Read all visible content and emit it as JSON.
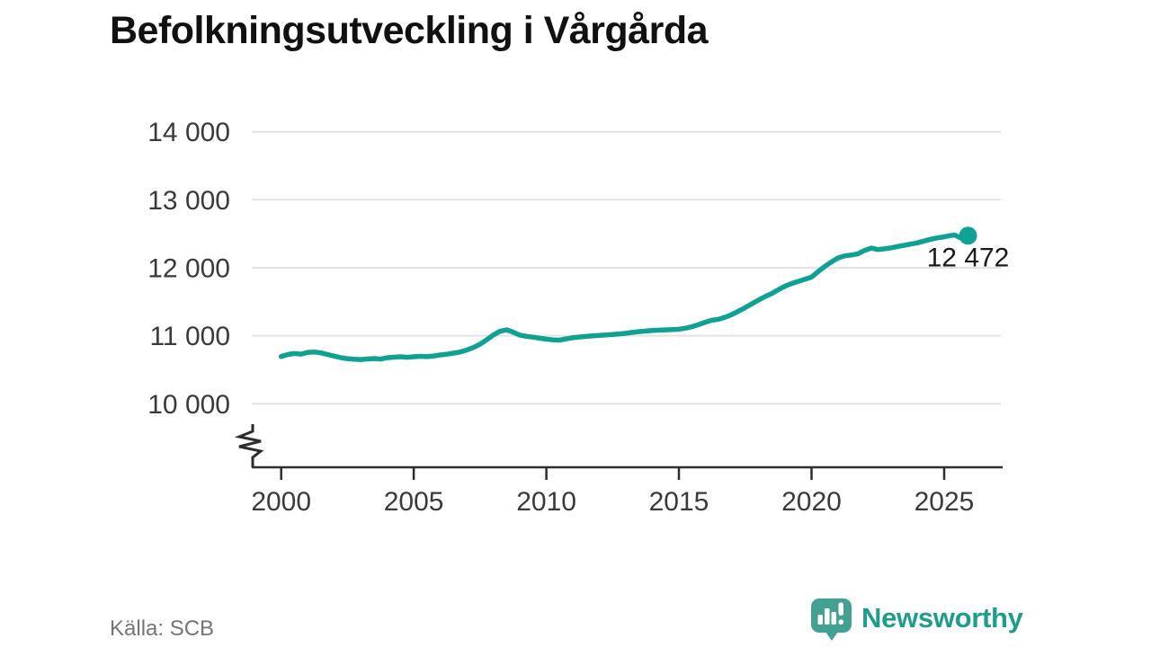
{
  "title": "Befolkningsutveckling i Vårgårda",
  "source": "Källa: SCB",
  "branding": {
    "wordmark": "Newsworthy",
    "icon": "newsworthy-bubble-barchart-icon",
    "bubble_color": "#43a093",
    "bar_color": "#ffffff",
    "wordmark_color": "#1e9c8c"
  },
  "chart_data": {
    "type": "line",
    "title": "Befolkningsutveckling i Vårgårda",
    "grid": true,
    "y_axis_break": true,
    "xlim": [
      1998.9,
      2027.2
    ],
    "ylim": [
      10000,
      14000
    ],
    "x_ticks": [
      2000,
      2005,
      2010,
      2015,
      2020,
      2025
    ],
    "y_ticks": [
      {
        "value": 14000,
        "label": "14 000"
      },
      {
        "value": 13000,
        "label": "13 000"
      },
      {
        "value": 12000,
        "label": "12 000"
      },
      {
        "value": 11000,
        "label": "11 000"
      },
      {
        "value": 10000,
        "label": "10 000"
      }
    ],
    "end_value": 12472,
    "end_label": "12 472",
    "colors": {
      "line": "#0fa293",
      "grid": "#e3e3e3",
      "axis": "#2d2d2d",
      "tick_text": "#3a3a3a",
      "end_label_text": "#1a1a1a"
    },
    "points": [
      [
        2000,
        10695
      ],
      [
        2000.25,
        10724
      ],
      [
        2000.5,
        10739
      ],
      [
        2000.75,
        10730
      ],
      [
        2001,
        10756
      ],
      [
        2001.25,
        10762
      ],
      [
        2001.5,
        10748
      ],
      [
        2001.75,
        10724
      ],
      [
        2002,
        10700
      ],
      [
        2002.25,
        10678
      ],
      [
        2002.5,
        10664
      ],
      [
        2002.75,
        10655
      ],
      [
        2003,
        10651
      ],
      [
        2003.25,
        10658
      ],
      [
        2003.5,
        10665
      ],
      [
        2003.75,
        10657
      ],
      [
        2004,
        10677
      ],
      [
        2004.25,
        10685
      ],
      [
        2004.5,
        10691
      ],
      [
        2004.75,
        10684
      ],
      [
        2005,
        10692
      ],
      [
        2005.25,
        10698
      ],
      [
        2005.5,
        10693
      ],
      [
        2005.75,
        10703
      ],
      [
        2006,
        10718
      ],
      [
        2006.25,
        10729
      ],
      [
        2006.5,
        10744
      ],
      [
        2006.75,
        10761
      ],
      [
        2007,
        10790
      ],
      [
        2007.25,
        10827
      ],
      [
        2007.5,
        10877
      ],
      [
        2007.75,
        10941
      ],
      [
        2008,
        11011
      ],
      [
        2008.25,
        11066
      ],
      [
        2008.5,
        11088
      ],
      [
        2008.75,
        11053
      ],
      [
        2009,
        11008
      ],
      [
        2009.25,
        10992
      ],
      [
        2009.5,
        10980
      ],
      [
        2009.75,
        10964
      ],
      [
        2010,
        10950
      ],
      [
        2010.25,
        10940
      ],
      [
        2010.5,
        10936
      ],
      [
        2010.75,
        10954
      ],
      [
        2011,
        10972
      ],
      [
        2011.25,
        10982
      ],
      [
        2011.5,
        10990
      ],
      [
        2011.75,
        10998
      ],
      [
        2012,
        11006
      ],
      [
        2012.25,
        11012
      ],
      [
        2012.5,
        11018
      ],
      [
        2012.75,
        11027
      ],
      [
        2013,
        11036
      ],
      [
        2013.25,
        11049
      ],
      [
        2013.5,
        11061
      ],
      [
        2013.75,
        11070
      ],
      [
        2014,
        11078
      ],
      [
        2014.25,
        11083
      ],
      [
        2014.5,
        11086
      ],
      [
        2014.75,
        11091
      ],
      [
        2015,
        11096
      ],
      [
        2015.25,
        11112
      ],
      [
        2015.5,
        11134
      ],
      [
        2015.75,
        11166
      ],
      [
        2016,
        11200
      ],
      [
        2016.25,
        11229
      ],
      [
        2016.5,
        11242
      ],
      [
        2016.75,
        11274
      ],
      [
        2017,
        11312
      ],
      [
        2017.25,
        11363
      ],
      [
        2017.5,
        11415
      ],
      [
        2017.75,
        11470
      ],
      [
        2018,
        11525
      ],
      [
        2018.25,
        11577
      ],
      [
        2018.5,
        11622
      ],
      [
        2018.75,
        11677
      ],
      [
        2019,
        11730
      ],
      [
        2019.25,
        11769
      ],
      [
        2019.5,
        11801
      ],
      [
        2019.75,
        11831
      ],
      [
        2020,
        11862
      ],
      [
        2020.25,
        11944
      ],
      [
        2020.5,
        12020
      ],
      [
        2020.75,
        12086
      ],
      [
        2021,
        12145
      ],
      [
        2021.25,
        12176
      ],
      [
        2021.5,
        12188
      ],
      [
        2021.75,
        12206
      ],
      [
        2022,
        12255
      ],
      [
        2022.25,
        12289
      ],
      [
        2022.5,
        12268
      ],
      [
        2022.75,
        12279
      ],
      [
        2023,
        12293
      ],
      [
        2023.25,
        12313
      ],
      [
        2023.5,
        12331
      ],
      [
        2023.75,
        12349
      ],
      [
        2024,
        12367
      ],
      [
        2024.25,
        12394
      ],
      [
        2024.5,
        12421
      ],
      [
        2024.75,
        12440
      ],
      [
        2025,
        12455
      ],
      [
        2025.2,
        12472
      ],
      [
        2025.4,
        12483
      ],
      [
        2025.65,
        12434
      ],
      [
        2025.9,
        12472
      ]
    ]
  }
}
